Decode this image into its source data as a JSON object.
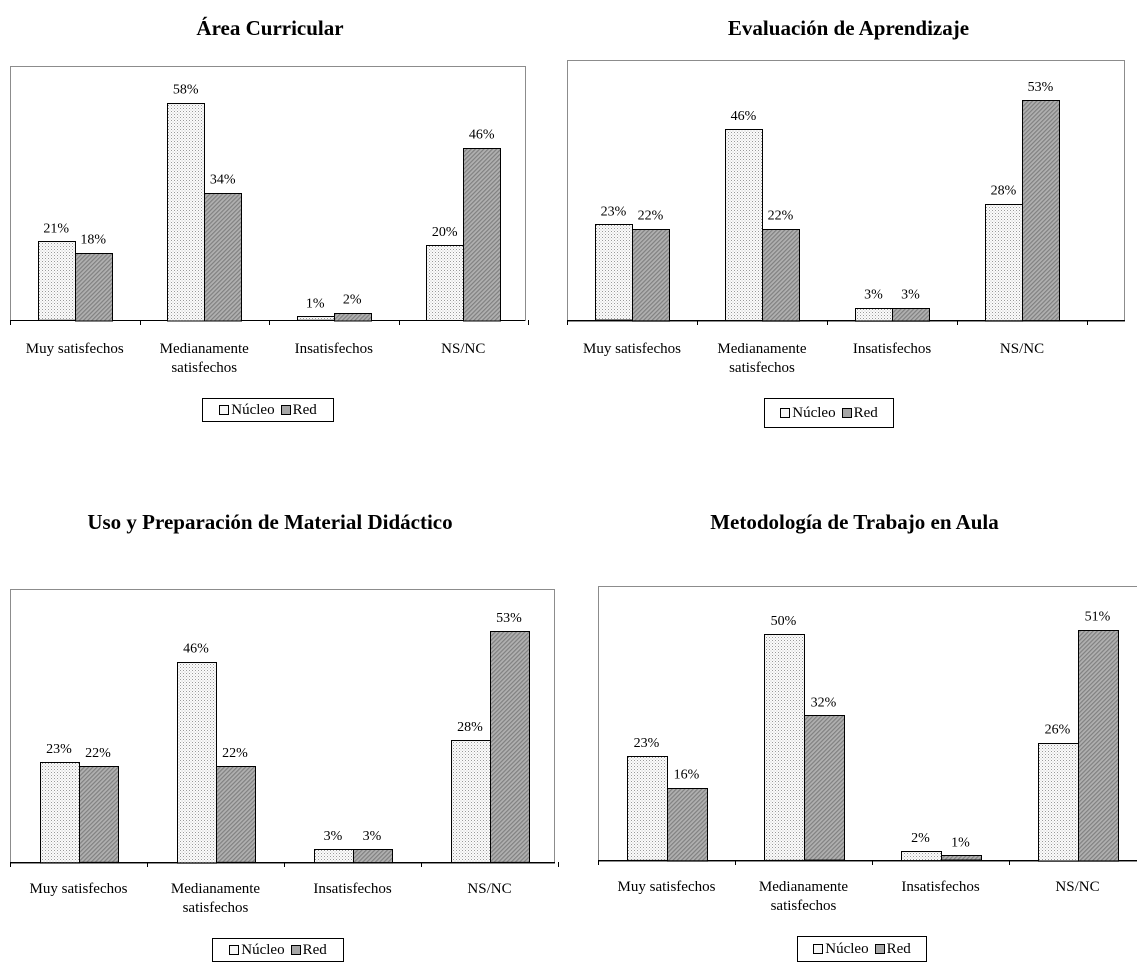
{
  "colors": {
    "nucleo_fill": "#f7f7f7",
    "red_fill": "#a6a6a6",
    "frame": "#8c8c8c"
  },
  "chart_data": [
    {
      "type": "bar",
      "title": "Área Curricular",
      "categories": [
        "Muy satisfechos",
        "Medianamente satisfechos",
        "Insatisfechos",
        "NS/NC"
      ],
      "category_lines": [
        [
          "Muy satisfechos"
        ],
        [
          "Medianamente",
          "satisfechos"
        ],
        [
          "Insatisfechos"
        ],
        [
          "NS/NC"
        ]
      ],
      "series": [
        {
          "name": "Núcleo",
          "values": [
            21,
            58,
            1,
            20
          ],
          "labels": [
            "21%",
            "58%",
            "1%",
            "20%"
          ]
        },
        {
          "name": "Red",
          "values": [
            18,
            34,
            2,
            46
          ],
          "labels": [
            "18%",
            "34%",
            "2%",
            "46%"
          ]
        }
      ],
      "ylim": [
        0,
        64
      ],
      "grid": false,
      "legend": "bottom"
    },
    {
      "type": "bar",
      "title": "Evaluación de Aprendizaje",
      "categories": [
        "Muy satisfechos",
        "Medianamente satisfechos",
        "Insatisfechos",
        "NS/NC"
      ],
      "category_lines": [
        [
          "Muy satisfechos"
        ],
        [
          "Medianamente",
          "satisfechos"
        ],
        [
          "Insatisfechos"
        ],
        [
          "NS/NC"
        ]
      ],
      "series": [
        {
          "name": "Núcleo",
          "values": [
            23,
            46,
            3,
            28
          ],
          "labels": [
            "23%",
            "46%",
            "3%",
            "28%"
          ]
        },
        {
          "name": "Red",
          "values": [
            22,
            22,
            3,
            53
          ],
          "labels": [
            "22%",
            "22%",
            "3%",
            "53%"
          ]
        }
      ],
      "ylim": [
        0,
        59
      ],
      "grid": false,
      "legend": "bottom"
    },
    {
      "type": "bar",
      "title": "Uso y Preparación de Material Didáctico",
      "categories": [
        "Muy satisfechos",
        "Medianamente satisfechos",
        "Insatisfechos",
        "NS/NC"
      ],
      "category_lines": [
        [
          "Muy satisfechos"
        ],
        [
          "Medianamente",
          "satisfechos"
        ],
        [
          "Insatisfechos"
        ],
        [
          "NS/NC"
        ]
      ],
      "series": [
        {
          "name": "Núcleo",
          "values": [
            23,
            46,
            3,
            28
          ],
          "labels": [
            "23%",
            "46%",
            "3%",
            "28%"
          ]
        },
        {
          "name": "Red",
          "values": [
            22,
            22,
            3,
            53
          ],
          "labels": [
            "22%",
            "22%",
            "3%",
            "53%"
          ]
        }
      ],
      "ylim": [
        0,
        59
      ],
      "grid": false,
      "legend": "bottom"
    },
    {
      "type": "bar",
      "title": "Metodología de Trabajo en Aula",
      "categories": [
        "Muy satisfechos",
        "Medianamente satisfechos",
        "Insatisfechos",
        "NS/NC"
      ],
      "category_lines": [
        [
          "Muy satisfechos"
        ],
        [
          "Medianamente",
          "satisfechos"
        ],
        [
          "Insatisfechos"
        ],
        [
          "NS/NC"
        ]
      ],
      "series": [
        {
          "name": "Núcleo",
          "values": [
            23,
            50,
            2,
            26
          ],
          "labels": [
            "23%",
            "50%",
            "2%",
            "26%"
          ]
        },
        {
          "name": "Red",
          "values": [
            16,
            32,
            1,
            51
          ],
          "labels": [
            "16%",
            "32%",
            "1%",
            "51%"
          ]
        }
      ],
      "ylim": [
        0,
        56
      ],
      "grid": false,
      "legend": "bottom"
    }
  ]
}
